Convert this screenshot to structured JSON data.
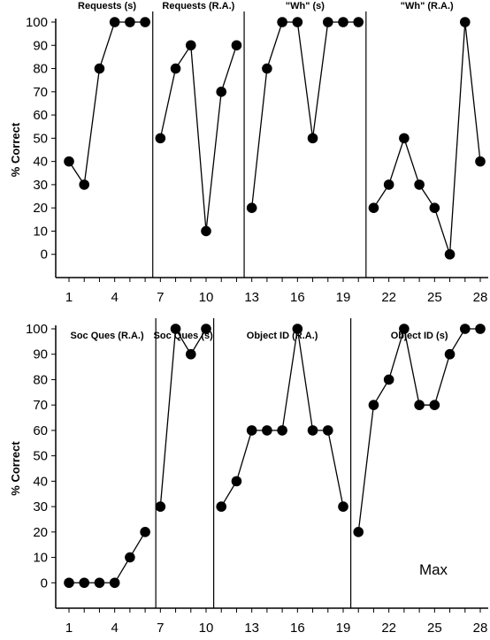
{
  "chart_data": [
    {
      "type": "line",
      "ylabel": "% Correct",
      "xlabel": "",
      "ylim": [
        -10,
        100
      ],
      "xlim": [
        1,
        28
      ],
      "y_ticks": [
        "100",
        "90",
        "80",
        "70",
        "60",
        "50",
        "40",
        "30",
        "20",
        "10",
        "0"
      ],
      "x_ticks": [
        "1",
        "4",
        "7",
        "10",
        "13",
        "16",
        "19",
        "22",
        "25",
        "28"
      ],
      "phase_changes": [
        6.5,
        12.5,
        20.5
      ],
      "phases": [
        {
          "label": "Requests (s)",
          "x": [
            1,
            2,
            3,
            4,
            5,
            6
          ],
          "y": [
            40,
            30,
            80,
            100,
            100,
            100
          ]
        },
        {
          "label": "Requests (R.A.)",
          "x": [
            7,
            8,
            9,
            10,
            11,
            12
          ],
          "y": [
            50,
            80,
            90,
            10,
            70,
            90
          ]
        },
        {
          "label": "\"Wh\" (s)",
          "x": [
            13,
            14,
            15,
            16,
            17,
            18,
            19,
            20
          ],
          "y": [
            20,
            80,
            100,
            100,
            50,
            100,
            100,
            100
          ]
        },
        {
          "label": "\"Wh\" (R.A.)",
          "x": [
            21,
            22,
            23,
            24,
            25,
            26,
            27,
            28
          ],
          "y": [
            20,
            30,
            50,
            30,
            20,
            0,
            100,
            40
          ]
        }
      ],
      "note": ""
    },
    {
      "type": "line",
      "ylabel": "% Correct",
      "xlabel": "",
      "ylim": [
        -10,
        100
      ],
      "xlim": [
        1,
        28
      ],
      "y_ticks": [
        "100",
        "90",
        "80",
        "70",
        "60",
        "50",
        "40",
        "30",
        "20",
        "10",
        "0"
      ],
      "x_ticks": [
        "1",
        "4",
        "7",
        "10",
        "13",
        "16",
        "19",
        "22",
        "25",
        "28"
      ],
      "phase_changes": [
        6.7,
        10.5,
        19.5
      ],
      "phases": [
        {
          "label": "Soc Ques (R.A.)",
          "x": [
            1,
            2,
            3,
            4,
            5,
            6
          ],
          "y": [
            0,
            0,
            0,
            0,
            10,
            20
          ]
        },
        {
          "label": "Soc Ques (s)",
          "x": [
            7,
            8,
            9,
            10
          ],
          "y": [
            30,
            100,
            90,
            100
          ]
        },
        {
          "label": "Object ID (R.A.)",
          "x": [
            11,
            12,
            13,
            14,
            15,
            16,
            17,
            18,
            19
          ],
          "y": [
            30,
            40,
            60,
            60,
            60,
            100,
            60,
            60,
            30
          ]
        },
        {
          "label": "Object ID (s)",
          "x": [
            20,
            21,
            22,
            23,
            24,
            25,
            26,
            27,
            28
          ],
          "y": [
            20,
            70,
            80,
            100,
            70,
            70,
            90,
            100,
            100
          ]
        }
      ],
      "note": "Max"
    }
  ]
}
